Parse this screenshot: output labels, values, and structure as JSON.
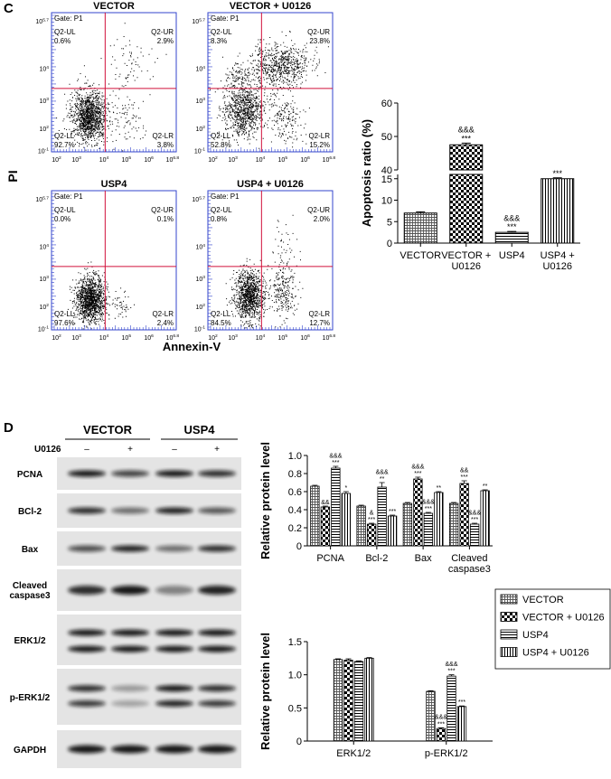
{
  "panel_c": {
    "label": "C",
    "flow_plots": [
      {
        "title": "VECTOR",
        "gate": "Gate: P1",
        "quadrants": [
          {
            "name": "Q2-UL",
            "value": "0.6%"
          },
          {
            "name": "Q2-UR",
            "value": "2.9%"
          },
          {
            "name": "Q2-LL",
            "value": "92.7%"
          },
          {
            "name": "Q2-LR",
            "value": "3.8%"
          }
        ]
      },
      {
        "title": "VECTOR + U0126",
        "gate": "Gate: P1",
        "quadrants": [
          {
            "name": "Q2-UL",
            "value": "8.3%"
          },
          {
            "name": "Q2-UR",
            "value": "23.8%"
          },
          {
            "name": "Q2-LL",
            "value": "52.8%"
          },
          {
            "name": "Q2-LR",
            "value": "15.2%"
          }
        ]
      },
      {
        "title": "USP4",
        "gate": "Gate: P1",
        "quadrants": [
          {
            "name": "Q2-UL",
            "value": "0.0%"
          },
          {
            "name": "Q2-UR",
            "value": "0.1%"
          },
          {
            "name": "Q2-LL",
            "value": "97.6%"
          },
          {
            "name": "Q2-LR",
            "value": "2.4%"
          }
        ]
      },
      {
        "title": "USP4 + U0126",
        "gate": "Gate: P1",
        "quadrants": [
          {
            "name": "Q2-UL",
            "value": "0.8%"
          },
          {
            "name": "Q2-UR",
            "value": "2.0%"
          },
          {
            "name": "Q2-LL",
            "value": "84.5%"
          },
          {
            "name": "Q2-LR",
            "value": "12.7%"
          }
        ]
      }
    ],
    "flow_y_label": "PI",
    "flow_x_label": "Annexin-V",
    "flow_y_ticks": [
      {
        "base": "10",
        "exp": "5.7"
      },
      {
        "base": "10",
        "exp": "4"
      },
      {
        "base": "10",
        "exp": "3"
      },
      {
        "base": "10",
        "exp": "2"
      },
      {
        "base": "10",
        "exp": "-1"
      }
    ],
    "flow_x_ticks": [
      {
        "base": "10",
        "exp": "2"
      },
      {
        "base": "10",
        "exp": "3"
      },
      {
        "base": "10",
        "exp": "4"
      },
      {
        "base": "10",
        "exp": "5"
      },
      {
        "base": "10",
        "exp": "6"
      },
      {
        "base": "10",
        "exp": "6.8"
      }
    ]
  },
  "panel_d": {
    "label": "D",
    "groups": [
      "VECTOR",
      "USP4"
    ],
    "treatment": "U0126",
    "treatment_states": [
      "–",
      "+",
      "–",
      "+"
    ],
    "rows": [
      "PCNA",
      "BCl-2",
      "Bax",
      "Cleaved\ncaspase3",
      "ERK1/2",
      "p-ERK1/2",
      "GAPDH"
    ]
  },
  "chart_data": [
    {
      "type": "bar",
      "y_label": "Apoptosis ratio (%)",
      "categories": [
        "VECTOR",
        "VECTOR +\nU0126",
        "USP4",
        "USP4 +\nU0126"
      ],
      "values": [
        7,
        47.5,
        2.5,
        15
      ],
      "errors": [
        0.3,
        0.5,
        0.2,
        0.2
      ],
      "patterns": [
        "crosshatch",
        "checker",
        "hlines",
        "vlines"
      ],
      "annotations": [
        null,
        "&&&\n***",
        "&&&\n***",
        "***"
      ],
      "ylim": [
        0,
        60
      ],
      "ybreak": [
        16,
        40
      ],
      "yticks": [
        0,
        5,
        10,
        15,
        40,
        50,
        60
      ]
    },
    {
      "type": "grouped_bar",
      "y_label": "Relative protein level",
      "categories": [
        "PCNA",
        "Bcl-2",
        "Bax",
        "Cleaved\ncaspase3"
      ],
      "series": [
        {
          "name": "VECTOR",
          "pattern": "crosshatch",
          "values": [
            0.66,
            0.44,
            0.47,
            0.47
          ],
          "errors": [
            0.01,
            0.01,
            0.01,
            0.01
          ],
          "annotations": [
            null,
            null,
            null,
            null
          ]
        },
        {
          "name": "VECTOR + U0126",
          "pattern": "checker",
          "values": [
            0.43,
            0.24,
            0.74,
            0.69
          ],
          "errors": [
            0.01,
            0.01,
            0.02,
            0.03
          ],
          "annotations": [
            "&&",
            "&\n***",
            "&&&\n***",
            "&&\n***"
          ]
        },
        {
          "name": "USP4",
          "pattern": "hlines",
          "values": [
            0.86,
            0.65,
            0.36,
            0.24
          ],
          "errors": [
            0.02,
            0.05,
            0.01,
            0.01
          ],
          "annotations": [
            "&&&\n***",
            "&&&\n**",
            "&&&\n***",
            "&&&\n***"
          ]
        },
        {
          "name": "USP4 + U0126",
          "pattern": "vlines",
          "values": [
            0.58,
            0.33,
            0.59,
            0.61
          ],
          "errors": [
            0.02,
            0.01,
            0.01,
            0.01
          ],
          "annotations": [
            "*",
            "***",
            "**",
            "**"
          ]
        }
      ],
      "ylim": [
        0,
        1
      ],
      "yticks": [
        0,
        0.2,
        0.4,
        0.6,
        0.8,
        {
          "value": 1,
          "label": "1.0"
        }
      ],
      "legend": "right"
    },
    {
      "type": "grouped_bar",
      "y_label": "Relative protein level",
      "categories": [
        "ERK1/2",
        "p-ERK1/2"
      ],
      "series": [
        {
          "name": "VECTOR",
          "pattern": "crosshatch",
          "values": [
            1.23,
            0.75
          ],
          "errors": [
            0.01,
            0.01
          ],
          "annotations": [
            null,
            null
          ]
        },
        {
          "name": "VECTOR + U0126",
          "pattern": "checker",
          "values": [
            1.22,
            0.19
          ],
          "errors": [
            0.02,
            0.01
          ],
          "annotations": [
            null,
            "&&&\n***"
          ]
        },
        {
          "name": "USP4",
          "pattern": "hlines",
          "values": [
            1.2,
            0.98
          ],
          "errors": [
            0.01,
            0.02
          ],
          "annotations": [
            null,
            "&&&\n***"
          ]
        },
        {
          "name": "USP4 + U0126",
          "pattern": "vlines",
          "values": [
            1.25,
            0.52
          ],
          "errors": [
            0.01,
            0.01
          ],
          "annotations": [
            null,
            "***"
          ]
        }
      ],
      "ylim": [
        0,
        1.5
      ],
      "yticks": [
        0,
        0.5,
        {
          "value": 1,
          "label": "1.0"
        },
        1.5
      ]
    }
  ]
}
